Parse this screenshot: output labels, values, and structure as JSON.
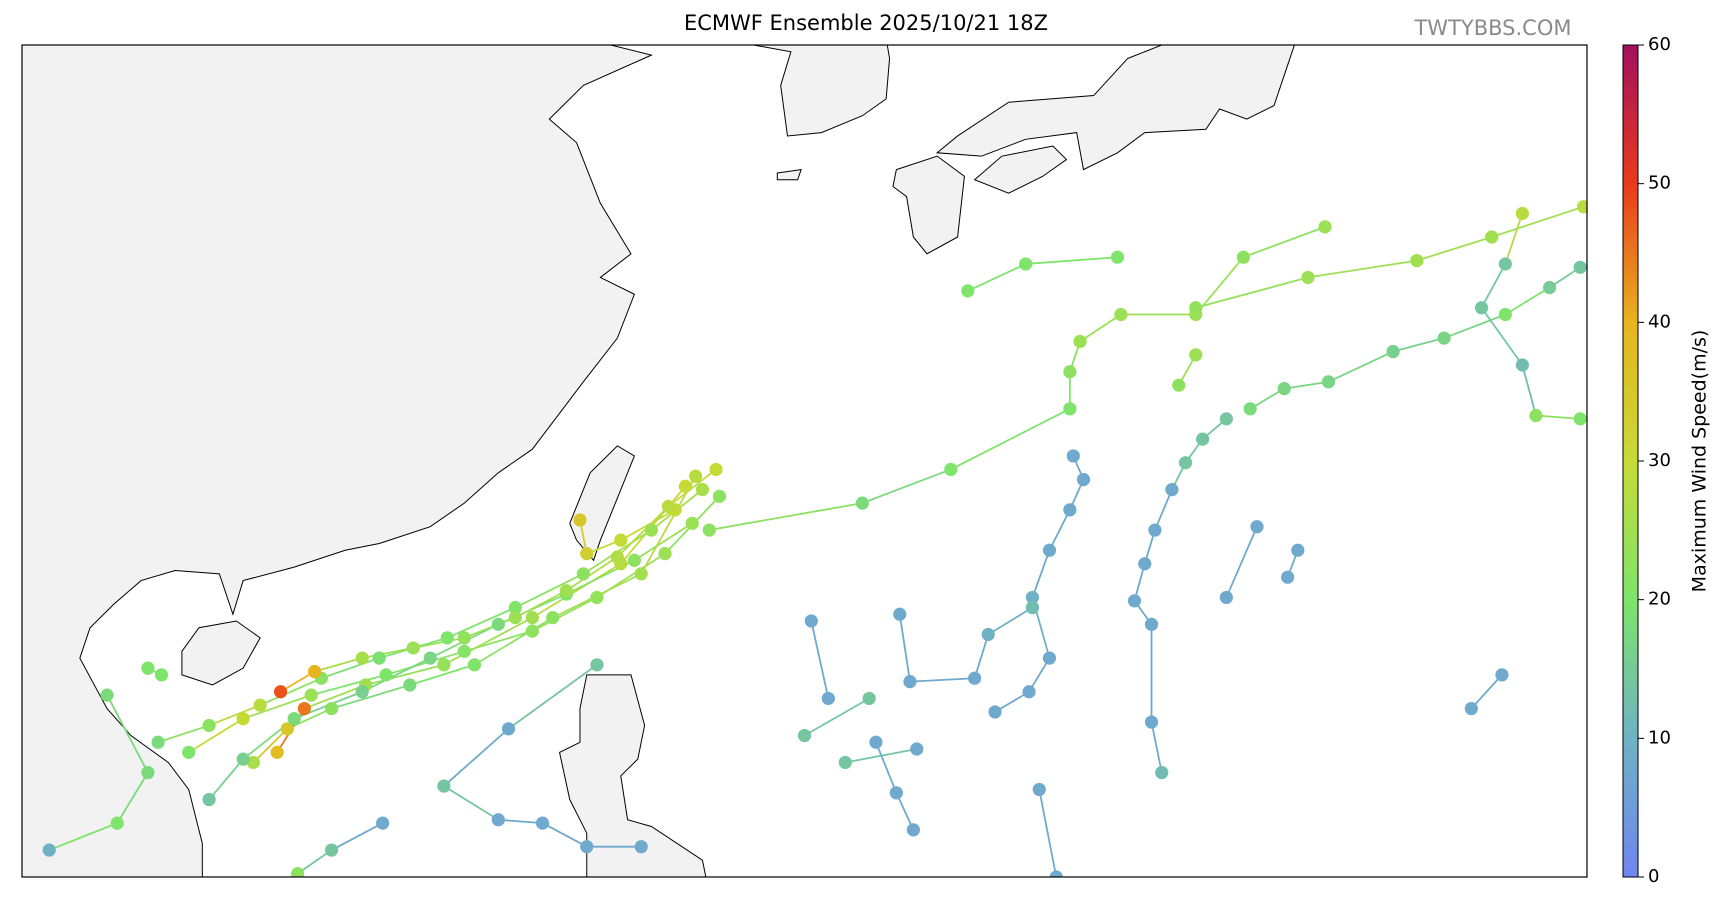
{
  "title": "ECMWF Ensemble 2025/10/21 18Z",
  "watermark": "TWTYBBS.COM",
  "colorbar": {
    "label": "Maximum Wind Speed(m/s)",
    "lim": [
      0,
      60
    ],
    "ticks": [
      0,
      10,
      20,
      30,
      40,
      50,
      60
    ],
    "colormap": [
      "#6f86f0",
      "#6fb2c4",
      "#7ee46a",
      "#c6da36",
      "#e8b41e",
      "#ea3a1c",
      "#a3105e"
    ]
  },
  "extent": {
    "lon": [
      104,
      150
    ],
    "lat": [
      12.5,
      37.2
    ]
  },
  "tracks": [
    {
      "lon": [
        124.5,
        122.9,
        120.9,
        119.0,
        117.0,
        114.7,
        112.5,
        110.5,
        108.9
      ],
      "lat": [
        23.8,
        22.1,
        20.8,
        19.8,
        19.2,
        18.5,
        17.9,
        17.2,
        16.2
      ],
      "wind": [
        22,
        24,
        23,
        22,
        21,
        20,
        24,
        30,
        20
      ]
    },
    {
      "lon": [
        123.8,
        122.2,
        119.6,
        117.3,
        115.4,
        113.1,
        111.8,
        110.8
      ],
      "lat": [
        24.4,
        21.5,
        20.2,
        18.8,
        18.2,
        17.5,
        16.9,
        15.9
      ],
      "wind": [
        28,
        25,
        22,
        20,
        18,
        22,
        35,
        26
      ]
    },
    {
      "lon": [
        123.5,
        121.6,
        119.0,
        116.4,
        114.1,
        112.3,
        111.5
      ],
      "lat": [
        24.1,
        21.8,
        20.2,
        18.8,
        18.2,
        17.5,
        16.2
      ],
      "wind": [
        30,
        28,
        25,
        23,
        25,
        45,
        38
      ]
    },
    {
      "lon": [
        123.2,
        121.6,
        120.6,
        120.4
      ],
      "lat": [
        23.4,
        22.5,
        22.1,
        23.1
      ],
      "wind": [
        30,
        30,
        33,
        35
      ]
    },
    {
      "lon": [
        124.0,
        122.5,
        120.5,
        118.5,
        116.5,
        114.5,
        112.8,
        111.0,
        109.5,
        108.0
      ],
      "lat": [
        24.0,
        22.8,
        21.5,
        20.5,
        19.6,
        19.0,
        18.4,
        17.6,
        17.0,
        16.5
      ],
      "wind": [
        26,
        24,
        22,
        20,
        20,
        19,
        22,
        28,
        22,
        18
      ]
    },
    {
      "lon": [
        123.7,
        122.0,
        120.0,
        118.0,
        116.0,
        114.0,
        112.0,
        110.5,
        109.5
      ],
      "lat": [
        23.0,
        21.9,
        20.9,
        20.0,
        19.0,
        18.0,
        17.2,
        16.0,
        14.8
      ],
      "wind": [
        24,
        22,
        20,
        18,
        17,
        16,
        18,
        16,
        14
      ]
    },
    {
      "lon": [
        124.4,
        123.0,
        121.5,
        120.0,
        118.5,
        117.0,
        115.5,
        114.0,
        112.6,
        111.6
      ],
      "lat": [
        24.6,
        23.5,
        22.0,
        21.0,
        20.2,
        19.6,
        19.3,
        19.0,
        18.6,
        18.0
      ],
      "wind": [
        30,
        28,
        27,
        25,
        24,
        23,
        24,
        26,
        40,
        48
      ]
    },
    {
      "lon": [
        124.2,
        128.7,
        131.3,
        134.8,
        134.8,
        135.1,
        136.3,
        138.5,
        139.9,
        142.3
      ],
      "lat": [
        22.8,
        23.6,
        24.6,
        26.4,
        27.5,
        28.4,
        29.2,
        29.2,
        30.9,
        31.8
      ],
      "wind": [
        22,
        18,
        20,
        20,
        22,
        24,
        24,
        24,
        22,
        24
      ]
    },
    {
      "lon": [
        138.5,
        141.8,
        145.0,
        147.2,
        149.9
      ],
      "lat": [
        29.4,
        30.3,
        30.8,
        31.5,
        32.4
      ],
      "wind": [
        23,
        24,
        25,
        25,
        28
      ]
    },
    {
      "lon": [
        140.1,
        141.1,
        142.4,
        144.3,
        145.8,
        147.6,
        148.9,
        149.8
      ],
      "lat": [
        26.4,
        27.0,
        27.2,
        28.1,
        28.5,
        29.2,
        30.0,
        30.6
      ],
      "wind": [
        18,
        17,
        17,
        16,
        17,
        20,
        15,
        14
      ]
    },
    {
      "lon": [
        131.8,
        133.5,
        136.2
      ],
      "lat": [
        29.9,
        30.7,
        30.9
      ],
      "wind": [
        20,
        20,
        20
      ]
    },
    {
      "lon": [
        138.5,
        138.0
      ],
      "lat": [
        28.0,
        27.1
      ],
      "wind": [
        24,
        22
      ]
    },
    {
      "lon": [
        139.4,
        138.7,
        138.2,
        137.8,
        137.3,
        137.0,
        136.7,
        137.2,
        137.2,
        137.5
      ],
      "lat": [
        26.1,
        25.5,
        24.8,
        24.0,
        22.8,
        21.8,
        20.7,
        20.0,
        17.1,
        15.6
      ],
      "wind": [
        14,
        14,
        14,
        8,
        8,
        8,
        8,
        8,
        8,
        12
      ]
    },
    {
      "lon": [
        134.9,
        135.2,
        134.8,
        134.2,
        133.7,
        134.2,
        133.6,
        132.6
      ],
      "lat": [
        25.0,
        24.3,
        23.4,
        22.2,
        20.8,
        19.0,
        18.0,
        17.4
      ],
      "wind": [
        8,
        8,
        8,
        8,
        10,
        8,
        8,
        8
      ]
    },
    {
      "lon": [
        127.2,
        127.7
      ],
      "lat": [
        20.1,
        17.8
      ],
      "wind": [
        8,
        8
      ]
    },
    {
      "lon": [
        129.8,
        130.1,
        132.0,
        132.4,
        133.7
      ],
      "lat": [
        20.3,
        18.3,
        18.4,
        19.7,
        20.5
      ],
      "wind": [
        8,
        8,
        8,
        10,
        12
      ]
    },
    {
      "lon": [
        127.0,
        128.9
      ],
      "lat": [
        16.7,
        17.8
      ],
      "wind": [
        14,
        14
      ]
    },
    {
      "lon": [
        128.2,
        130.3
      ],
      "lat": [
        15.9,
        16.3
      ],
      "wind": [
        14,
        8
      ]
    },
    {
      "lon": [
        129.1,
        129.7,
        130.2
      ],
      "lat": [
        16.5,
        15.0,
        13.9
      ],
      "wind": [
        8,
        8,
        8
      ]
    },
    {
      "lon": [
        133.9,
        134.4
      ],
      "lat": [
        15.1,
        12.5
      ],
      "wind": [
        8,
        8
      ]
    },
    {
      "lon": [
        147.5,
        146.6
      ],
      "lat": [
        18.5,
        17.5
      ],
      "wind": [
        8,
        8
      ]
    },
    {
      "lon": [
        141.5,
        141.2
      ],
      "lat": [
        22.2,
        21.4
      ],
      "wind": [
        8,
        8
      ]
    },
    {
      "lon": [
        140.3,
        139.4
      ],
      "lat": [
        22.9,
        20.8
      ],
      "wind": [
        8,
        8
      ]
    },
    {
      "lon": [
        120.9,
        118.3,
        116.4,
        118.0,
        119.3,
        120.6,
        122.2
      ],
      "lat": [
        18.8,
        16.9,
        15.2,
        14.2,
        14.1,
        13.4,
        13.4
      ],
      "wind": [
        14,
        8,
        14,
        8,
        8,
        8,
        8
      ]
    },
    {
      "lon": [
        114.6,
        113.1,
        112.1
      ],
      "lat": [
        14.1,
        13.3,
        12.6
      ],
      "wind": [
        8,
        14,
        22
      ]
    },
    {
      "lon": [
        148.1,
        147.6,
        146.9,
        148.1,
        148.5,
        149.8
      ],
      "lat": [
        32.2,
        30.7,
        29.4,
        27.7,
        26.2,
        26.1
      ],
      "wind": [
        28,
        14,
        14,
        12,
        22,
        20
      ]
    },
    {
      "lon": [
        106.5,
        107.7,
        106.8,
        104.8
      ],
      "lat": [
        17.9,
        15.6,
        14.1,
        13.3
      ],
      "wind": [
        18,
        18,
        20,
        10
      ]
    },
    {
      "lon": [
        107.7,
        108.1
      ],
      "lat": [
        18.7,
        18.5
      ],
      "wind": [
        20,
        20
      ]
    }
  ]
}
